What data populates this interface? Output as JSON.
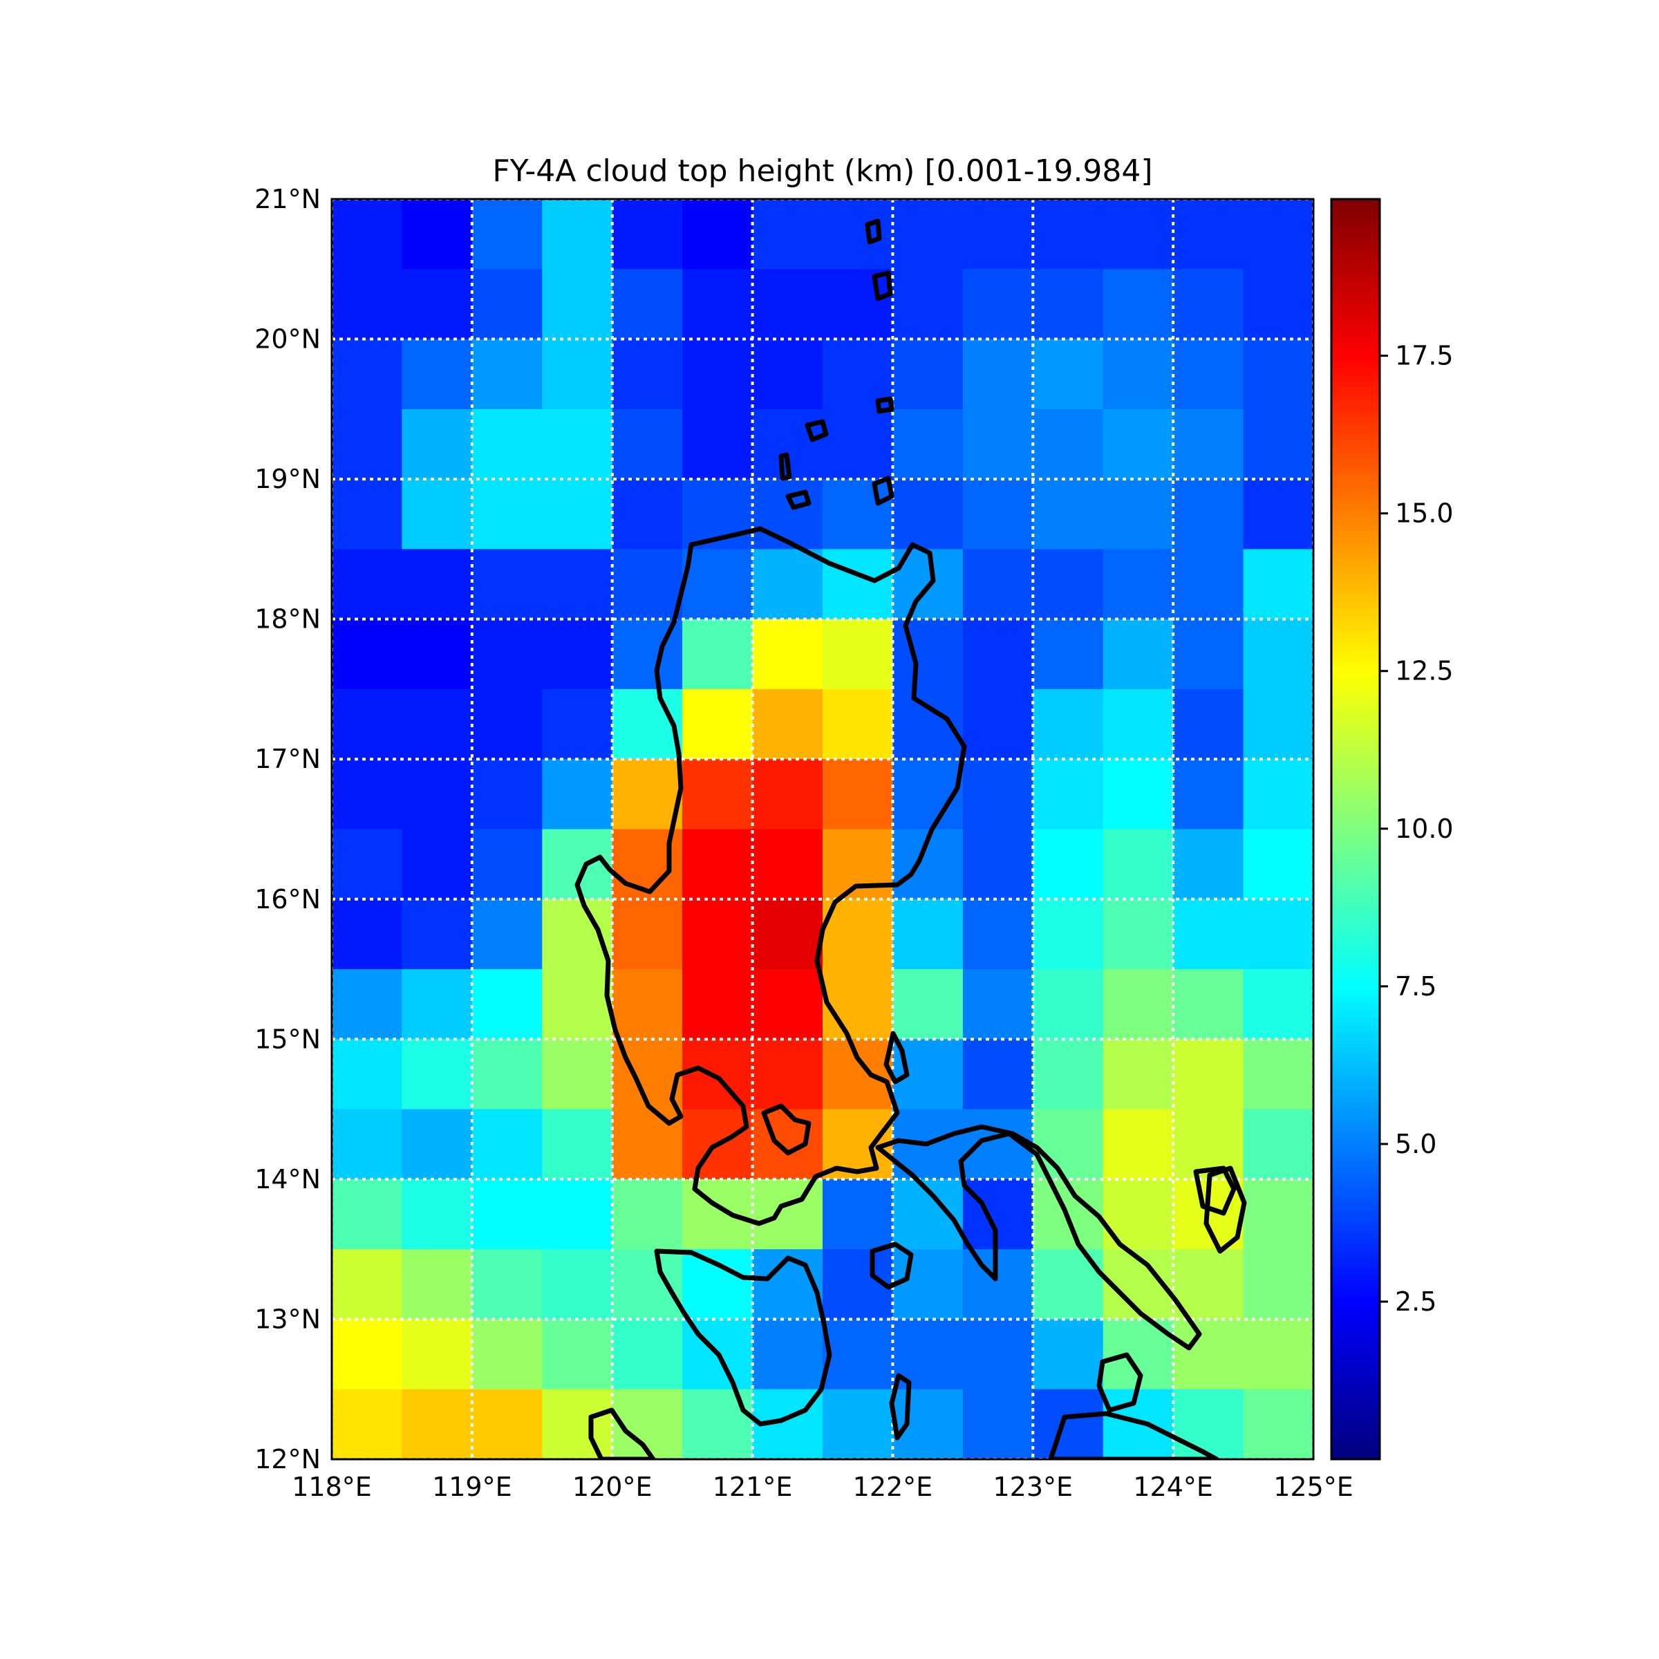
{
  "title": "FY-4A cloud top height (km) [0.001-19.984]",
  "map": {
    "lon_range": [
      118,
      125
    ],
    "lat_range": [
      12,
      21
    ],
    "x_ticks": [
      {
        "value": 118,
        "label": "118°E"
      },
      {
        "value": 119,
        "label": "119°E"
      },
      {
        "value": 120,
        "label": "120°E"
      },
      {
        "value": 121,
        "label": "121°E"
      },
      {
        "value": 122,
        "label": "122°E"
      },
      {
        "value": 123,
        "label": "123°E"
      },
      {
        "value": 124,
        "label": "124°E"
      },
      {
        "value": 125,
        "label": "125°E"
      }
    ],
    "y_ticks": [
      {
        "value": 12,
        "label": "12°N"
      },
      {
        "value": 13,
        "label": "13°N"
      },
      {
        "value": 14,
        "label": "14°N"
      },
      {
        "value": 15,
        "label": "15°N"
      },
      {
        "value": 16,
        "label": "16°N"
      },
      {
        "value": 17,
        "label": "17°N"
      },
      {
        "value": 18,
        "label": "18°N"
      },
      {
        "value": 19,
        "label": "19°N"
      },
      {
        "value": 20,
        "label": "20°N"
      },
      {
        "value": 21,
        "label": "21°N"
      }
    ],
    "gridlines": true,
    "gridline_color": "#ffffff",
    "coastline_color": "#000000"
  },
  "colorbar": {
    "colormap": "jet",
    "range": [
      0.001,
      19.984
    ],
    "ticks": [
      {
        "value": 2.5,
        "label": "2.5"
      },
      {
        "value": 5.0,
        "label": "5.0"
      },
      {
        "value": 7.5,
        "label": "7.5"
      },
      {
        "value": 10.0,
        "label": "10.0"
      },
      {
        "value": 12.5,
        "label": "12.5"
      },
      {
        "value": 15.0,
        "label": "15.0"
      },
      {
        "value": 17.5,
        "label": "17.5"
      }
    ],
    "stops": [
      "#00007f",
      "#0000ff",
      "#007fff",
      "#00ffff",
      "#7fff7f",
      "#ffff00",
      "#ff7f00",
      "#ff0000",
      "#7f0000"
    ]
  },
  "chart_data": {
    "type": "heatmap",
    "title": "FY-4A cloud top height (km) [0.001-19.984]",
    "xlabel": "",
    "ylabel": "",
    "xlim": [
      118,
      125
    ],
    "ylim": [
      12,
      21
    ],
    "value_range": [
      0.001,
      19.984
    ],
    "unit": "km",
    "x": [
      118.25,
      118.75,
      119.25,
      119.75,
      120.25,
      120.75,
      121.25,
      121.75,
      122.25,
      122.75,
      123.25,
      123.75,
      124.25,
      124.75
    ],
    "y": [
      20.75,
      20.25,
      19.75,
      19.25,
      18.75,
      18.25,
      17.75,
      17.25,
      16.75,
      16.25,
      15.75,
      15.25,
      14.75,
      14.25,
      13.75,
      13.25,
      12.75,
      12.25
    ],
    "values": [
      [
        3.0,
        2.5,
        4.5,
        6.5,
        3.0,
        2.5,
        3.5,
        3.5,
        3.5,
        3.5,
        3.5,
        3.5,
        3.5,
        3.5
      ],
      [
        3.0,
        3.0,
        4.0,
        6.5,
        4.0,
        3.0,
        3.0,
        3.0,
        3.5,
        4.0,
        4.0,
        4.5,
        4.0,
        3.5
      ],
      [
        3.5,
        4.5,
        5.5,
        6.5,
        3.5,
        3.0,
        3.0,
        3.5,
        4.0,
        5.0,
        5.5,
        5.0,
        4.5,
        4.0
      ],
      [
        3.5,
        6.0,
        7.0,
        7.0,
        4.0,
        3.0,
        3.5,
        3.5,
        4.5,
        5.0,
        5.0,
        5.5,
        5.0,
        4.0
      ],
      [
        3.5,
        6.5,
        7.0,
        7.0,
        3.5,
        4.0,
        4.0,
        4.5,
        4.0,
        4.5,
        5.0,
        5.0,
        4.5,
        3.5
      ],
      [
        3.0,
        3.0,
        3.5,
        3.5,
        4.0,
        4.5,
        6.0,
        7.0,
        5.5,
        4.0,
        4.0,
        4.5,
        4.5,
        7.0
      ],
      [
        2.5,
        2.5,
        3.0,
        3.0,
        4.5,
        9.0,
        12.5,
        12.0,
        4.0,
        3.5,
        4.5,
        6.0,
        4.5,
        6.5
      ],
      [
        3.0,
        3.0,
        3.0,
        3.5,
        8.0,
        12.5,
        14.0,
        13.0,
        4.0,
        3.5,
        6.5,
        7.0,
        4.0,
        6.5
      ],
      [
        3.0,
        3.0,
        3.5,
        5.5,
        14.0,
        16.5,
        17.0,
        15.5,
        4.5,
        4.0,
        7.0,
        7.5,
        4.5,
        7.0
      ],
      [
        3.5,
        3.0,
        4.0,
        9.0,
        15.5,
        17.5,
        17.5,
        14.5,
        5.0,
        4.0,
        7.5,
        8.5,
        6.0,
        7.5
      ],
      [
        3.0,
        3.5,
        5.0,
        11.0,
        15.5,
        17.5,
        18.0,
        14.0,
        6.5,
        4.5,
        8.0,
        9.0,
        7.0,
        7.0
      ],
      [
        5.5,
        6.5,
        7.5,
        11.0,
        15.0,
        17.5,
        17.5,
        14.0,
        9.0,
        5.0,
        8.5,
        10.0,
        9.5,
        8.0
      ],
      [
        7.0,
        8.0,
        9.0,
        10.5,
        15.0,
        17.0,
        17.0,
        15.0,
        5.5,
        4.0,
        9.0,
        11.0,
        11.5,
        10.0
      ],
      [
        6.5,
        6.0,
        7.0,
        8.5,
        15.0,
        16.5,
        16.0,
        14.0,
        5.0,
        5.0,
        9.5,
        12.0,
        11.5,
        9.0
      ],
      [
        9.0,
        8.0,
        7.5,
        7.5,
        9.5,
        10.5,
        10.5,
        4.5,
        6.0,
        3.5,
        10.0,
        11.5,
        12.0,
        10.0
      ],
      [
        11.5,
        10.5,
        9.0,
        8.5,
        9.0,
        7.5,
        5.5,
        4.0,
        5.5,
        5.0,
        9.0,
        11.0,
        11.0,
        10.0
      ],
      [
        12.5,
        12.0,
        10.5,
        9.5,
        8.5,
        7.0,
        5.0,
        4.5,
        4.5,
        4.5,
        6.0,
        9.5,
        10.5,
        10.5
      ],
      [
        13.0,
        13.5,
        13.5,
        11.5,
        10.5,
        9.0,
        7.0,
        6.0,
        5.5,
        4.5,
        4.0,
        7.0,
        8.5,
        9.5
      ]
    ]
  }
}
